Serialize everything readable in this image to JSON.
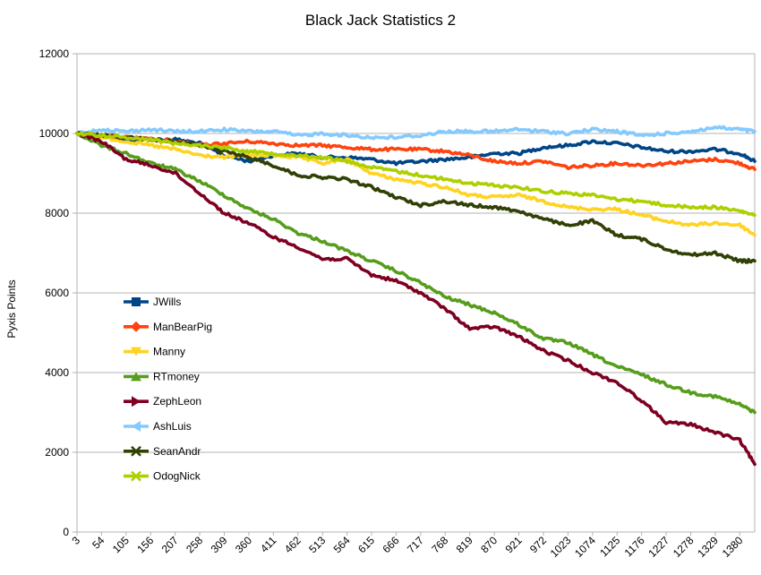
{
  "chart_data": {
    "type": "line",
    "title": "Black Jack Statistics 2",
    "xlabel": "",
    "ylabel": "Pyxis Points",
    "ylim": [
      0,
      12000
    ],
    "yticks": [
      0,
      2000,
      4000,
      6000,
      8000,
      10000,
      12000
    ],
    "xlim": [
      3,
      1411
    ],
    "xticks": [
      3,
      54,
      105,
      156,
      207,
      258,
      309,
      360,
      411,
      462,
      513,
      564,
      615,
      666,
      717,
      768,
      819,
      870,
      921,
      972,
      1023,
      1074,
      1125,
      1176,
      1227,
      1278,
      1329,
      1380
    ],
    "grid": "horizontal",
    "legend": "left-middle",
    "series": [
      {
        "name": "JWills",
        "color": "#004586",
        "marker": "square",
        "x": [
          3,
          54,
          105,
          156,
          207,
          258,
          309,
          360,
          411,
          462,
          513,
          564,
          615,
          666,
          717,
          768,
          819,
          870,
          921,
          972,
          1023,
          1074,
          1125,
          1176,
          1227,
          1278,
          1329,
          1380,
          1411
        ],
        "y": [
          10000,
          9950,
          9850,
          9850,
          9850,
          9750,
          9450,
          9300,
          9450,
          9500,
          9400,
          9400,
          9350,
          9250,
          9300,
          9350,
          9400,
          9500,
          9500,
          9650,
          9700,
          9800,
          9750,
          9650,
          9550,
          9550,
          9600,
          9500,
          9300
        ]
      },
      {
        "name": "ManBearPig",
        "color": "#ff420e",
        "marker": "diamond",
        "x": [
          3,
          54,
          105,
          156,
          207,
          258,
          309,
          360,
          411,
          462,
          513,
          564,
          615,
          666,
          717,
          768,
          819,
          870,
          921,
          972,
          1023,
          1074,
          1125,
          1176,
          1227,
          1278,
          1329,
          1380,
          1411
        ],
        "y": [
          10000,
          9950,
          9900,
          9850,
          9800,
          9700,
          9750,
          9800,
          9750,
          9700,
          9700,
          9650,
          9600,
          9600,
          9600,
          9550,
          9450,
          9300,
          9250,
          9300,
          9150,
          9200,
          9250,
          9200,
          9250,
          9300,
          9350,
          9250,
          9100
        ]
      },
      {
        "name": "Manny",
        "color": "#ffd320",
        "marker": "triangle-down",
        "x": [
          3,
          54,
          105,
          156,
          207,
          258,
          309,
          360,
          411,
          462,
          513,
          564,
          615,
          666,
          717,
          768,
          819,
          870,
          921,
          972,
          1023,
          1074,
          1125,
          1176,
          1227,
          1278,
          1329,
          1380,
          1411
        ],
        "y": [
          10000,
          9900,
          9800,
          9700,
          9600,
          9450,
          9400,
          9450,
          9450,
          9400,
          9250,
          9350,
          9000,
          8850,
          8750,
          8650,
          8450,
          8400,
          8450,
          8300,
          8150,
          8100,
          8100,
          7950,
          7800,
          7700,
          7750,
          7700,
          7450
        ]
      },
      {
        "name": "RTmoney",
        "color": "#579d1c",
        "marker": "triangle-up",
        "x": [
          3,
          54,
          105,
          156,
          207,
          258,
          309,
          360,
          411,
          462,
          513,
          564,
          615,
          666,
          717,
          768,
          819,
          870,
          921,
          972,
          1023,
          1074,
          1125,
          1176,
          1227,
          1278,
          1329,
          1380,
          1411
        ],
        "y": [
          10000,
          9700,
          9500,
          9250,
          9100,
          8800,
          8450,
          8100,
          7850,
          7500,
          7300,
          7050,
          6800,
          6550,
          6250,
          5900,
          5700,
          5500,
          5200,
          4850,
          4750,
          4450,
          4150,
          3950,
          3700,
          3500,
          3400,
          3200,
          3000
        ]
      },
      {
        "name": "ZephLeon",
        "color": "#7e0021",
        "marker": "triangle-right",
        "x": [
          3,
          54,
          105,
          156,
          207,
          258,
          309,
          360,
          411,
          462,
          513,
          564,
          615,
          666,
          717,
          768,
          819,
          870,
          921,
          972,
          1023,
          1074,
          1125,
          1176,
          1227,
          1278,
          1329,
          1380,
          1411
        ],
        "y": [
          10000,
          9800,
          9350,
          9200,
          9000,
          8500,
          8000,
          7750,
          7400,
          7150,
          6850,
          6850,
          6450,
          6300,
          6000,
          5600,
          5100,
          5150,
          4900,
          4550,
          4300,
          4000,
          3750,
          3300,
          2750,
          2700,
          2500,
          2300,
          1700
        ]
      },
      {
        "name": "AshLuis",
        "color": "#83caff",
        "marker": "triangle-left",
        "x": [
          3,
          54,
          105,
          156,
          207,
          258,
          309,
          360,
          411,
          462,
          513,
          564,
          615,
          666,
          717,
          768,
          819,
          870,
          921,
          972,
          1023,
          1074,
          1125,
          1176,
          1227,
          1278,
          1329,
          1380,
          1411
        ],
        "y": [
          10000,
          10100,
          10050,
          10100,
          10050,
          10050,
          10100,
          10050,
          10050,
          9950,
          10000,
          9950,
          9900,
          9900,
          9950,
          10050,
          10050,
          10050,
          10100,
          10050,
          10000,
          10100,
          10050,
          9950,
          10000,
          10050,
          10150,
          10100,
          10050
        ]
      },
      {
        "name": "SeanAndr",
        "color": "#314004",
        "marker": "x",
        "x": [
          3,
          54,
          105,
          156,
          207,
          258,
          309,
          360,
          411,
          462,
          513,
          564,
          615,
          666,
          717,
          768,
          819,
          870,
          921,
          972,
          1023,
          1074,
          1125,
          1176,
          1227,
          1278,
          1329,
          1380,
          1411
        ],
        "y": [
          10000,
          9950,
          9900,
          9850,
          9800,
          9700,
          9550,
          9400,
          9200,
          8950,
          8900,
          8850,
          8650,
          8400,
          8200,
          8300,
          8200,
          8150,
          8050,
          7850,
          7700,
          7800,
          7450,
          7350,
          7100,
          6950,
          7000,
          6800,
          6800
        ]
      },
      {
        "name": "OdogNick",
        "color": "#aecf00",
        "marker": "x",
        "x": [
          3,
          54,
          105,
          156,
          207,
          258,
          309,
          360,
          411,
          462,
          513,
          564,
          615,
          666,
          717,
          768,
          819,
          870,
          921,
          972,
          1023,
          1074,
          1125,
          1176,
          1227,
          1278,
          1329,
          1380,
          1411
        ],
        "y": [
          10000,
          9950,
          9900,
          9850,
          9750,
          9700,
          9650,
          9550,
          9500,
          9450,
          9400,
          9300,
          9150,
          9050,
          8950,
          8850,
          8750,
          8700,
          8650,
          8550,
          8500,
          8450,
          8350,
          8300,
          8200,
          8150,
          8150,
          8050,
          7950
        ]
      }
    ]
  }
}
